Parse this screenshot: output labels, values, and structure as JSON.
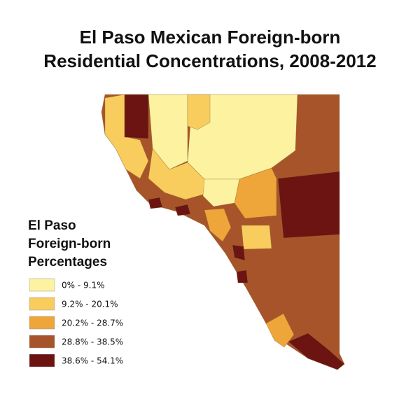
{
  "title": [
    "El Paso Mexican Foreign-born",
    "Residential Concentrations, 2008-2012"
  ],
  "legend": {
    "title": [
      "El Paso",
      "Foreign-born",
      "Percentages"
    ],
    "items": [
      {
        "label": "0% - 9.1%",
        "color": "#fdf2a0"
      },
      {
        "label": "9.2% - 20.1%",
        "color": "#f8cd5e"
      },
      {
        "label": "20.2% - 28.7%",
        "color": "#eea53a"
      },
      {
        "label": "28.8% - 38.5%",
        "color": "#a8542a"
      },
      {
        "label": "38.6% - 54.1%",
        "color": "#6b1412"
      }
    ]
  }
}
